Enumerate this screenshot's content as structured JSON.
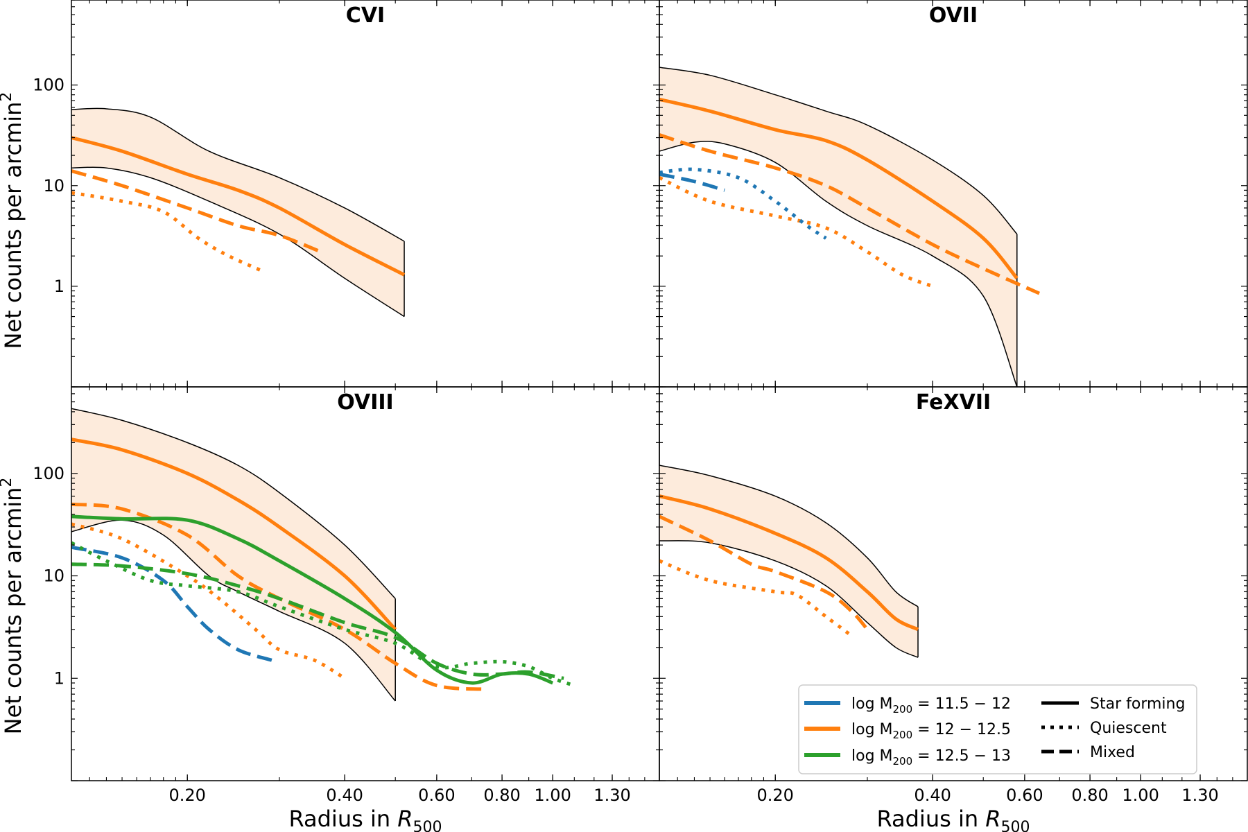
{
  "figure": {
    "ylabel_main": "Net counts per arcmin",
    "ylabel_sup": "2",
    "xlabel_prefix": "Radius in ",
    "xlabel_var": "R",
    "xlabel_sub": "500"
  },
  "colors": {
    "blue": "#1f77b4",
    "orange": "#ff7f0e",
    "green": "#2ca02c",
    "band": "#fdebdc",
    "edge": "#000000"
  },
  "legend": {
    "masses": [
      {
        "label": "log M",
        "sub": "200",
        "range": " = 11.5 − 12",
        "color": "#1f77b4"
      },
      {
        "label": "log M",
        "sub": "200",
        "range": " = 12 − 12.5",
        "color": "#ff7f0e"
      },
      {
        "label": "log M",
        "sub": "200",
        "range": " = 12.5 − 13",
        "color": "#2ca02c"
      }
    ],
    "styles": [
      {
        "label": "Star forming",
        "dash": "solid"
      },
      {
        "label": "Quiescent",
        "dash": "dotted"
      },
      {
        "label": "Mixed",
        "dash": "dashed"
      }
    ]
  },
  "chart_data": [
    {
      "type": "line",
      "title": "CVI",
      "xscale": "log",
      "yscale": "log",
      "xlim": [
        0.12,
        1.6
      ],
      "ylim": [
        0.1,
        700
      ],
      "xticks": [
        0.2,
        0.4,
        0.6,
        0.8,
        1.0,
        1.3
      ],
      "xtick_labels": [
        "0.20",
        "0.40",
        "0.60",
        "0.80",
        "1.00",
        "1.30"
      ],
      "yticks": [
        1,
        10,
        100
      ],
      "ytick_labels": [
        "1",
        "10",
        "100"
      ],
      "show_ylabel": true,
      "show_xlabel": false,
      "band": {
        "upper": [
          [
            0.12,
            57
          ],
          [
            0.14,
            58
          ],
          [
            0.17,
            48
          ],
          [
            0.22,
            22
          ],
          [
            0.3,
            12
          ],
          [
            0.4,
            6
          ],
          [
            0.52,
            2.8
          ]
        ],
        "lower": [
          [
            0.12,
            15
          ],
          [
            0.14,
            15
          ],
          [
            0.17,
            12
          ],
          [
            0.22,
            7
          ],
          [
            0.3,
            3.3
          ],
          [
            0.4,
            1.2
          ],
          [
            0.52,
            0.5
          ]
        ]
      },
      "series": [
        {
          "name": "Star forming",
          "mass": "12-12.5",
          "color": "orange",
          "dash": "solid",
          "points": [
            [
              0.12,
              30
            ],
            [
              0.15,
              22
            ],
            [
              0.2,
              13
            ],
            [
              0.25,
              9
            ],
            [
              0.3,
              6
            ],
            [
              0.4,
              2.6
            ],
            [
              0.52,
              1.3
            ]
          ]
        },
        {
          "name": "Mixed",
          "mass": "12-12.5",
          "color": "orange",
          "dash": "dashed",
          "points": [
            [
              0.12,
              14
            ],
            [
              0.15,
              10
            ],
            [
              0.2,
              6
            ],
            [
              0.25,
              4
            ],
            [
              0.3,
              3.2
            ],
            [
              0.36,
              2.2
            ]
          ]
        },
        {
          "name": "Quiescent",
          "mass": "12-12.5",
          "color": "orange",
          "dash": "dotted",
          "points": [
            [
              0.12,
              8.5
            ],
            [
              0.15,
              7
            ],
            [
              0.18,
              5.5
            ],
            [
              0.21,
              3
            ],
            [
              0.24,
              2
            ],
            [
              0.28,
              1.4
            ]
          ]
        }
      ]
    },
    {
      "type": "line",
      "title": "OVII",
      "xscale": "log",
      "yscale": "log",
      "xlim": [
        0.12,
        1.6
      ],
      "ylim": [
        0.1,
        700
      ],
      "xticks": [
        0.2,
        0.4,
        0.6,
        0.8,
        1.0,
        1.3
      ],
      "xtick_labels": [
        "0.20",
        "0.40",
        "0.60",
        "0.80",
        "1.00",
        "1.30"
      ],
      "yticks": [
        1,
        10,
        100
      ],
      "ytick_labels": [
        "1",
        "10",
        "100"
      ],
      "show_ylabel": false,
      "show_xlabel": false,
      "band": {
        "upper": [
          [
            0.12,
            150
          ],
          [
            0.15,
            125
          ],
          [
            0.2,
            80
          ],
          [
            0.25,
            55
          ],
          [
            0.3,
            40
          ],
          [
            0.4,
            18
          ],
          [
            0.5,
            8
          ],
          [
            0.58,
            3.3
          ]
        ],
        "lower": [
          [
            0.12,
            22
          ],
          [
            0.14,
            27
          ],
          [
            0.16,
            26
          ],
          [
            0.2,
            17
          ],
          [
            0.25,
            7
          ],
          [
            0.3,
            4
          ],
          [
            0.4,
            2
          ],
          [
            0.5,
            0.8
          ],
          [
            0.58,
            0.1
          ]
        ]
      },
      "series": [
        {
          "name": "Star forming",
          "mass": "12-12.5",
          "color": "orange",
          "dash": "solid",
          "points": [
            [
              0.12,
              72
            ],
            [
              0.15,
              55
            ],
            [
              0.2,
              36
            ],
            [
              0.25,
              28
            ],
            [
              0.3,
              18
            ],
            [
              0.4,
              7
            ],
            [
              0.5,
              3
            ],
            [
              0.58,
              1.2
            ]
          ]
        },
        {
          "name": "Mixed",
          "mass": "12-12.5",
          "color": "orange",
          "dash": "dashed",
          "points": [
            [
              0.12,
              32
            ],
            [
              0.15,
              22
            ],
            [
              0.2,
              15
            ],
            [
              0.25,
              10
            ],
            [
              0.3,
              6
            ],
            [
              0.4,
              2.6
            ],
            [
              0.5,
              1.5
            ],
            [
              0.64,
              0.85
            ]
          ]
        },
        {
          "name": "Quiescent",
          "mass": "12-12.5",
          "color": "orange",
          "dash": "dotted",
          "points": [
            [
              0.12,
              12
            ],
            [
              0.15,
              7
            ],
            [
              0.2,
              5
            ],
            [
              0.25,
              3.8
            ],
            [
              0.3,
              2.2
            ],
            [
              0.35,
              1.3
            ],
            [
              0.4,
              1
            ]
          ]
        },
        {
          "name": "Mixed",
          "mass": "11.5-12",
          "color": "blue",
          "dash": "dashed",
          "points": [
            [
              0.12,
              13
            ],
            [
              0.14,
              11
            ],
            [
              0.16,
              9
            ]
          ]
        },
        {
          "name": "Quiescent",
          "mass": "11.5-12",
          "color": "blue",
          "dash": "dotted",
          "points": [
            [
              0.12,
              13.5
            ],
            [
              0.14,
              14.5
            ],
            [
              0.17,
              12
            ],
            [
              0.2,
              7
            ],
            [
              0.23,
              4
            ],
            [
              0.25,
              3
            ]
          ]
        }
      ]
    },
    {
      "type": "line",
      "title": "OVIII",
      "xscale": "log",
      "yscale": "log",
      "xlim": [
        0.12,
        1.6
      ],
      "ylim": [
        0.1,
        700
      ],
      "xticks": [
        0.2,
        0.4,
        0.6,
        0.8,
        1.0,
        1.3
      ],
      "xtick_labels": [
        "0.20",
        "0.40",
        "0.60",
        "0.80",
        "1.00",
        "1.30"
      ],
      "yticks": [
        1,
        10,
        100
      ],
      "ytick_labels": [
        "1",
        "10",
        "100"
      ],
      "show_ylabel": true,
      "show_xlabel": true,
      "band": {
        "upper": [
          [
            0.12,
            430
          ],
          [
            0.15,
            330
          ],
          [
            0.2,
            200
          ],
          [
            0.25,
            120
          ],
          [
            0.3,
            65
          ],
          [
            0.4,
            20
          ],
          [
            0.5,
            6
          ]
        ],
        "lower": [
          [
            0.12,
            27
          ],
          [
            0.15,
            35
          ],
          [
            0.18,
            25
          ],
          [
            0.22,
            10
          ],
          [
            0.25,
            7
          ],
          [
            0.3,
            4.5
          ],
          [
            0.4,
            2.2
          ],
          [
            0.5,
            0.6
          ]
        ]
      },
      "series": [
        {
          "name": "Star forming",
          "mass": "12-12.5",
          "color": "orange",
          "dash": "solid",
          "points": [
            [
              0.12,
              215
            ],
            [
              0.15,
              170
            ],
            [
              0.2,
              100
            ],
            [
              0.25,
              55
            ],
            [
              0.3,
              30
            ],
            [
              0.4,
              10
            ],
            [
              0.5,
              3
            ]
          ]
        },
        {
          "name": "Mixed",
          "mass": "12-12.5",
          "color": "orange",
          "dash": "dashed",
          "points": [
            [
              0.12,
              50
            ],
            [
              0.15,
              45
            ],
            [
              0.2,
              25
            ],
            [
              0.25,
              10
            ],
            [
              0.3,
              6
            ],
            [
              0.4,
              3
            ],
            [
              0.5,
              1.4
            ],
            [
              0.6,
              0.85
            ],
            [
              0.75,
              0.78
            ]
          ]
        },
        {
          "name": "Quiescent",
          "mass": "12-12.5",
          "color": "orange",
          "dash": "dotted",
          "points": [
            [
              0.12,
              32
            ],
            [
              0.15,
              23
            ],
            [
              0.2,
              10
            ],
            [
              0.23,
              6
            ],
            [
              0.27,
              3
            ],
            [
              0.3,
              1.9
            ],
            [
              0.35,
              1.5
            ],
            [
              0.4,
              1
            ]
          ]
        },
        {
          "name": "Mixed",
          "mass": "11.5-12",
          "color": "blue",
          "dash": "dashed",
          "points": [
            [
              0.12,
              19
            ],
            [
              0.15,
              15
            ],
            [
              0.18,
              9
            ],
            [
              0.2,
              5
            ],
            [
              0.22,
              3
            ],
            [
              0.25,
              1.9
            ],
            [
              0.29,
              1.5
            ]
          ]
        },
        {
          "name": "Star forming",
          "mass": "12.5-13",
          "color": "green",
          "dash": "solid",
          "points": [
            [
              0.12,
              38
            ],
            [
              0.15,
              36
            ],
            [
              0.2,
              35
            ],
            [
              0.25,
              23
            ],
            [
              0.3,
              14
            ],
            [
              0.4,
              6
            ],
            [
              0.5,
              2.8
            ],
            [
              0.6,
              1.2
            ],
            [
              0.7,
              0.9
            ],
            [
              0.8,
              1.1
            ],
            [
              0.9,
              1.1
            ],
            [
              1.0,
              0.9
            ]
          ]
        },
        {
          "name": "Mixed",
          "mass": "12.5-13",
          "color": "green",
          "dash": "dashed",
          "points": [
            [
              0.12,
              13
            ],
            [
              0.15,
              12.5
            ],
            [
              0.2,
              10.5
            ],
            [
              0.25,
              8
            ],
            [
              0.3,
              6
            ],
            [
              0.4,
              3.5
            ],
            [
              0.5,
              2.5
            ],
            [
              0.6,
              1.4
            ],
            [
              0.7,
              1.1
            ],
            [
              0.8,
              1.1
            ],
            [
              0.9,
              1.15
            ],
            [
              1.05,
              1
            ]
          ]
        },
        {
          "name": "Quiescent",
          "mass": "12.5-13",
          "color": "green",
          "dash": "dotted",
          "points": [
            [
              0.12,
              21
            ],
            [
              0.14,
              14
            ],
            [
              0.17,
              9
            ],
            [
              0.2,
              8
            ],
            [
              0.25,
              7
            ],
            [
              0.3,
              5
            ],
            [
              0.4,
              3
            ],
            [
              0.5,
              2.2
            ],
            [
              0.6,
              1.3
            ],
            [
              0.7,
              1.4
            ],
            [
              0.8,
              1.45
            ],
            [
              0.9,
              1.3
            ],
            [
              1.0,
              1
            ],
            [
              1.1,
              0.85
            ]
          ]
        }
      ]
    },
    {
      "type": "line",
      "title": "FeXVII",
      "xscale": "log",
      "yscale": "log",
      "xlim": [
        0.12,
        1.6
      ],
      "ylim": [
        0.1,
        700
      ],
      "xticks": [
        0.2,
        0.4,
        0.6,
        0.8,
        1.0,
        1.3
      ],
      "xtick_labels": [
        "0.20",
        "0.40",
        "0.60",
        "0.80",
        "1.00",
        "1.30"
      ],
      "yticks": [
        1,
        10,
        100
      ],
      "ytick_labels": [
        "1",
        "10",
        "100"
      ],
      "show_ylabel": false,
      "show_xlabel": true,
      "band": {
        "upper": [
          [
            0.12,
            120
          ],
          [
            0.15,
            95
          ],
          [
            0.2,
            60
          ],
          [
            0.25,
            33
          ],
          [
            0.3,
            15
          ],
          [
            0.34,
            7
          ],
          [
            0.375,
            5
          ]
        ],
        "lower": [
          [
            0.12,
            22
          ],
          [
            0.15,
            21
          ],
          [
            0.2,
            14
          ],
          [
            0.25,
            8
          ],
          [
            0.3,
            3.5
          ],
          [
            0.34,
            2
          ],
          [
            0.375,
            1.6
          ]
        ]
      },
      "series": [
        {
          "name": "Star forming",
          "mass": "12-12.5",
          "color": "orange",
          "dash": "solid",
          "points": [
            [
              0.12,
              60
            ],
            [
              0.15,
              45
            ],
            [
              0.2,
              26
            ],
            [
              0.25,
              15
            ],
            [
              0.3,
              7
            ],
            [
              0.34,
              3.8
            ],
            [
              0.375,
              3
            ]
          ]
        },
        {
          "name": "Mixed",
          "mass": "12-12.5",
          "color": "orange",
          "dash": "dashed",
          "points": [
            [
              0.12,
              38
            ],
            [
              0.15,
              22
            ],
            [
              0.18,
              13
            ],
            [
              0.2,
              11
            ],
            [
              0.25,
              7
            ],
            [
              0.28,
              4.5
            ],
            [
              0.3,
              3
            ]
          ]
        },
        {
          "name": "Quiescent",
          "mass": "12-12.5",
          "color": "orange",
          "dash": "dotted",
          "points": [
            [
              0.12,
              14
            ],
            [
              0.15,
              9
            ],
            [
              0.2,
              7
            ],
            [
              0.22,
              6.5
            ],
            [
              0.25,
              4
            ],
            [
              0.28,
              2.6
            ]
          ]
        }
      ]
    }
  ]
}
